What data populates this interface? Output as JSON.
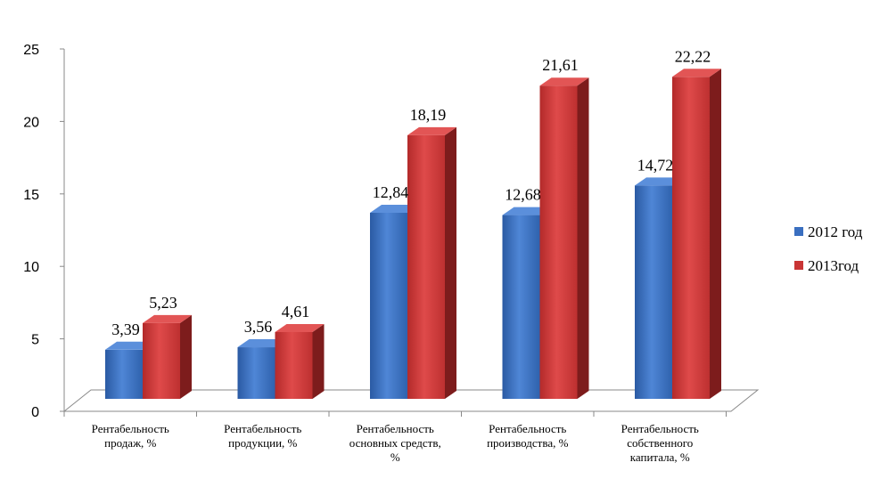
{
  "chart_data": {
    "type": "bar",
    "categories": [
      [
        "Рентабельность",
        "продаж, %"
      ],
      [
        "Рентабельность",
        "продукции,  %"
      ],
      [
        "Рентабельность",
        "основных средств,",
        "%"
      ],
      [
        "Рентабельность",
        "производства, %"
      ],
      [
        "Рентабельность",
        "собственного",
        "капитала,  %"
      ]
    ],
    "series": [
      {
        "name": "2012 год",
        "values": [
          3.39,
          3.56,
          12.84,
          12.68,
          14.72
        ],
        "labels": [
          "3,39",
          "3,56",
          "12,84",
          "12,68",
          "14,72"
        ],
        "color": "#3a6fc0"
      },
      {
        "name": "2013год",
        "values": [
          5.23,
          4.61,
          18.19,
          21.61,
          22.22
        ],
        "labels": [
          "5,23",
          "4,61",
          "18,19",
          "21,61",
          "22,22"
        ],
        "color": "#c93535"
      }
    ],
    "yticks": [
      "0",
      "5",
      "10",
      "15",
      "20",
      "25"
    ],
    "ylim": [
      0,
      25
    ],
    "legend_position": "right"
  }
}
